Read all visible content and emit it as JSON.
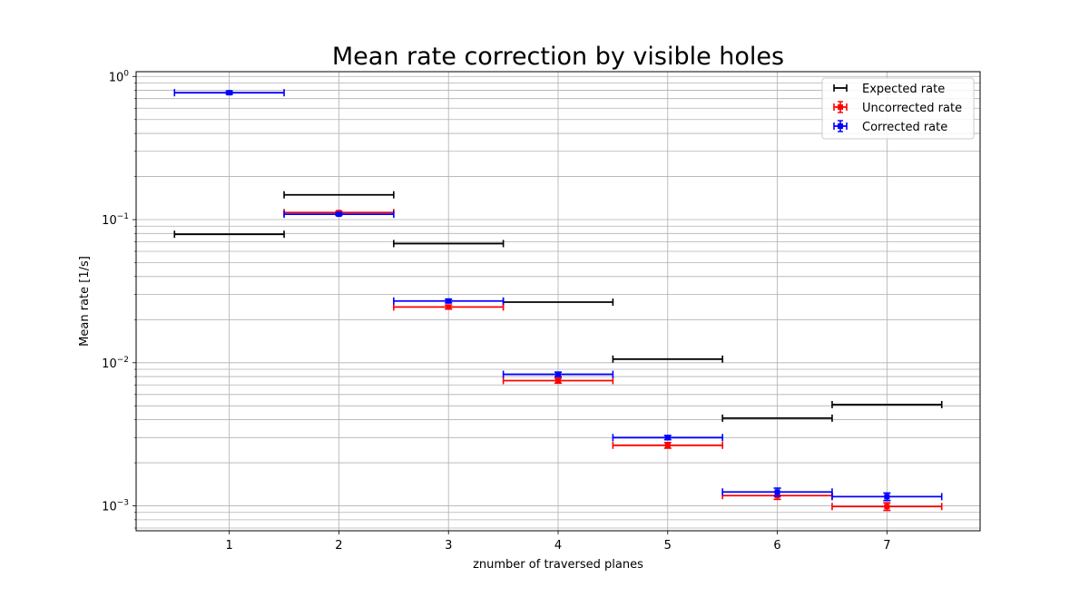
{
  "chart_data": {
    "type": "scatter",
    "title": "Mean rate correction by visible holes",
    "xlabel": "znumber of traversed planes",
    "ylabel": "Mean rate [1/s]",
    "yscale": "log",
    "xlim": [
      0.15,
      7.85
    ],
    "ylim": [
      0.00067,
      1.08
    ],
    "xticks": [
      1,
      2,
      3,
      4,
      5,
      6,
      7
    ],
    "xtick_labels": [
      "1",
      "2",
      "3",
      "4",
      "5",
      "6",
      "7"
    ],
    "yticks": [
      0.001,
      0.01,
      0.1,
      1
    ],
    "ytick_labels": [
      {
        "base": "10",
        "exp": "−3"
      },
      {
        "base": "10",
        "exp": "−2"
      },
      {
        "base": "10",
        "exp": "−1"
      },
      {
        "base": "10",
        "exp": "0"
      }
    ],
    "grid": true,
    "grid_minor_y": true,
    "legend_position": "top-right",
    "series": [
      {
        "name": "Expected rate",
        "color": "#000000",
        "marker": "none",
        "points": [
          {
            "x": 1,
            "y": 0.079,
            "xerr": 0.5
          },
          {
            "x": 2,
            "y": 0.149,
            "xerr": 0.5
          },
          {
            "x": 3,
            "y": 0.068,
            "xerr": 0.5
          },
          {
            "x": 4,
            "y": 0.0265,
            "xerr": 0.5
          },
          {
            "x": 5,
            "y": 0.0106,
            "xerr": 0.5
          },
          {
            "x": 6,
            "y": 0.0041,
            "xerr": 0.5
          },
          {
            "x": 7,
            "y": 0.0051,
            "xerr": 0.5
          }
        ]
      },
      {
        "name": "Uncorrected rate",
        "color": "#ff0000",
        "marker": "square",
        "points": [
          {
            "x": 2,
            "y": 0.112,
            "xerr": 0.5,
            "yerr": 0.002
          },
          {
            "x": 3,
            "y": 0.0245,
            "xerr": 0.5,
            "yerr": 0.0008
          },
          {
            "x": 4,
            "y": 0.0075,
            "xerr": 0.5,
            "yerr": 0.0003
          },
          {
            "x": 5,
            "y": 0.00265,
            "xerr": 0.5,
            "yerr": 0.00012
          },
          {
            "x": 6,
            "y": 0.00118,
            "xerr": 0.5,
            "yerr": 7e-05
          },
          {
            "x": 7,
            "y": 0.00099,
            "xerr": 0.5,
            "yerr": 6e-05
          }
        ]
      },
      {
        "name": "Corrected rate",
        "color": "#0000ff",
        "marker": "square",
        "points": [
          {
            "x": 1,
            "y": 0.77,
            "xerr": 0.5,
            "yerr": 0.02
          },
          {
            "x": 2,
            "y": 0.109,
            "xerr": 0.5,
            "yerr": 0.002
          },
          {
            "x": 3,
            "y": 0.027,
            "xerr": 0.5,
            "yerr": 0.0008
          },
          {
            "x": 4,
            "y": 0.0083,
            "xerr": 0.5,
            "yerr": 0.0003
          },
          {
            "x": 5,
            "y": 0.003,
            "xerr": 0.5,
            "yerr": 0.0001
          },
          {
            "x": 6,
            "y": 0.00125,
            "xerr": 0.5,
            "yerr": 8e-05
          },
          {
            "x": 7,
            "y": 0.00116,
            "xerr": 0.5,
            "yerr": 7e-05
          }
        ]
      }
    ]
  }
}
